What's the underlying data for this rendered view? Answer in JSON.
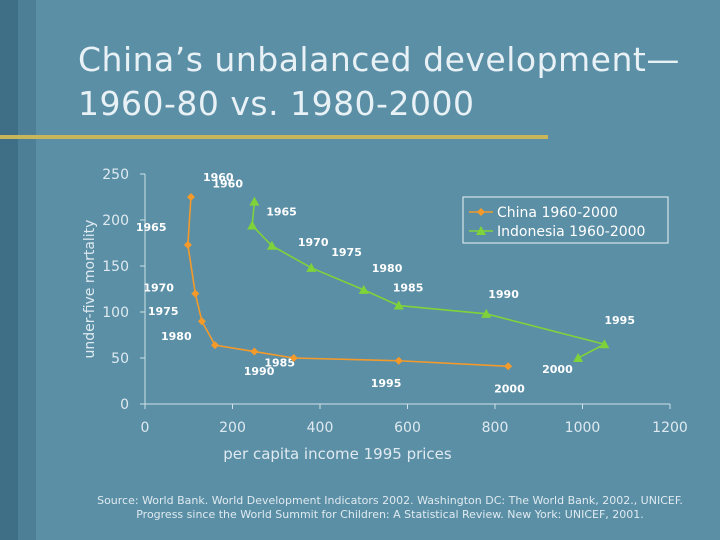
{
  "slide": {
    "title_line1": "China’s unbalanced development—",
    "title_line2": "1960-80 vs. 1980-2000",
    "source": "Source: World Bank. World Development Indicators 2002. Washington DC: The World Bank, 2002., UNICEF. Progress since the World Summit for Children: A Statistical Review. New York: UNICEF, 2001."
  },
  "colors": {
    "background": "#5b8fa6",
    "china": "#f39a2b",
    "indonesia": "#7fd33a",
    "accent_rule": "#c9b65a"
  },
  "chart_data": {
    "type": "line",
    "title": "",
    "xlabel": "per capita income 1995 prices",
    "ylabel": "under-five mortality",
    "xlim": [
      0,
      1200
    ],
    "ylim": [
      0,
      250
    ],
    "x_ticks": [
      "0",
      "200",
      "400",
      "600",
      "800",
      "1000",
      "1200"
    ],
    "y_ticks": [
      "0",
      "50",
      "100",
      "150",
      "200",
      "250"
    ],
    "legend_position": "top-right",
    "grid": false,
    "series": [
      {
        "name": "China 1960-2000",
        "color": "#f39a2b",
        "marker": "diamond",
        "points": [
          {
            "x": 105,
            "y": 225,
            "label": "1960"
          },
          {
            "x": 98,
            "y": 173,
            "label": "1965"
          },
          {
            "x": 115,
            "y": 120,
            "label": "1970"
          },
          {
            "x": 130,
            "y": 90,
            "label": "1975"
          },
          {
            "x": 160,
            "y": 64,
            "label": "1980"
          },
          {
            "x": 250,
            "y": 57,
            "label": "1985"
          },
          {
            "x": 340,
            "y": 50,
            "label": "1990"
          },
          {
            "x": 580,
            "y": 47,
            "label": "1995"
          },
          {
            "x": 830,
            "y": 41,
            "label": "2000"
          }
        ]
      },
      {
        "name": "Indonesia 1960-2000",
        "color": "#7fd33a",
        "marker": "triangle",
        "points": [
          {
            "x": 250,
            "y": 220,
            "label": "1960"
          },
          {
            "x": 245,
            "y": 194,
            "label": "1965"
          },
          {
            "x": 290,
            "y": 172,
            "label": "1970"
          },
          {
            "x": 380,
            "y": 148,
            "label": "1975"
          },
          {
            "x": 500,
            "y": 124,
            "label": "1980"
          },
          {
            "x": 580,
            "y": 107,
            "label": "1985"
          },
          {
            "x": 780,
            "y": 98,
            "label": "1990"
          },
          {
            "x": 1050,
            "y": 65,
            "label": "1995"
          },
          {
            "x": 990,
            "y": 50,
            "label": "2000"
          }
        ]
      }
    ]
  }
}
